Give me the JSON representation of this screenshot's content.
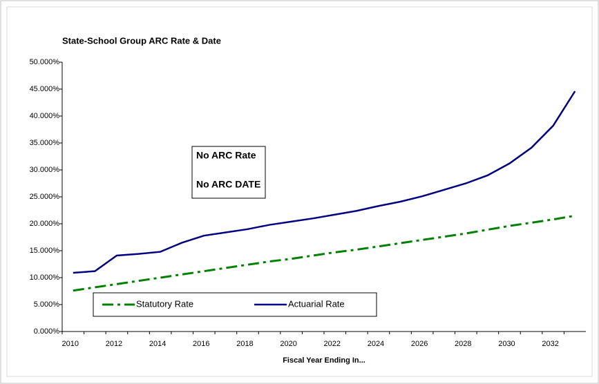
{
  "chart_data": {
    "type": "line",
    "title": "State-School Group ARC Rate & Date",
    "x_label": "Fiscal Year Ending In...",
    "annotations": [
      "No ARC Rate",
      "No ARC DATE"
    ],
    "categories": [
      "2010",
      null,
      "2012",
      null,
      "2014",
      null,
      "2016",
      null,
      "2018",
      null,
      "2020",
      null,
      "2022",
      null,
      "2024",
      null,
      "2026",
      null,
      "2028",
      null,
      "2030",
      null,
      "2032",
      null
    ],
    "series": [
      {
        "name": "Statutory Rate",
        "color": "#008000",
        "line_style": "dashdot",
        "values": [
          7.6,
          8.2,
          8.8,
          9.4,
          10.0,
          10.6,
          11.2,
          11.8,
          12.4,
          13.0,
          13.5,
          14.1,
          14.7,
          15.2,
          15.8,
          16.4,
          17.0,
          17.6,
          18.2,
          18.9,
          19.6,
          20.2,
          20.8,
          21.5
        ]
      },
      {
        "name": "Actuarial Rate",
        "color": "#000080",
        "line_style": "solid",
        "values": [
          10.9,
          11.2,
          14.1,
          14.4,
          14.8,
          16.5,
          17.8,
          18.4,
          19.0,
          19.8,
          20.4,
          21.0,
          21.7,
          22.4,
          23.3,
          24.1,
          25.1,
          26.3,
          27.5,
          29.0,
          31.2,
          34.1,
          38.2,
          44.6
        ]
      }
    ],
    "ylim": [
      0,
      50
    ],
    "yticks": [
      {
        "value": 0,
        "label": "0.000%"
      },
      {
        "value": 5,
        "label": "5.000%"
      },
      {
        "value": 10,
        "label": "10.000%"
      },
      {
        "value": 15,
        "label": "15.000%"
      },
      {
        "value": 20,
        "label": "20.000%"
      },
      {
        "value": 25,
        "label": "25.000%"
      },
      {
        "value": 30,
        "label": "30.000%"
      },
      {
        "value": 35,
        "label": "35.000%"
      },
      {
        "value": 40,
        "label": "40.000%"
      },
      {
        "value": 45,
        "label": "45.000%"
      },
      {
        "value": 50,
        "label": "50.000%"
      }
    ]
  }
}
